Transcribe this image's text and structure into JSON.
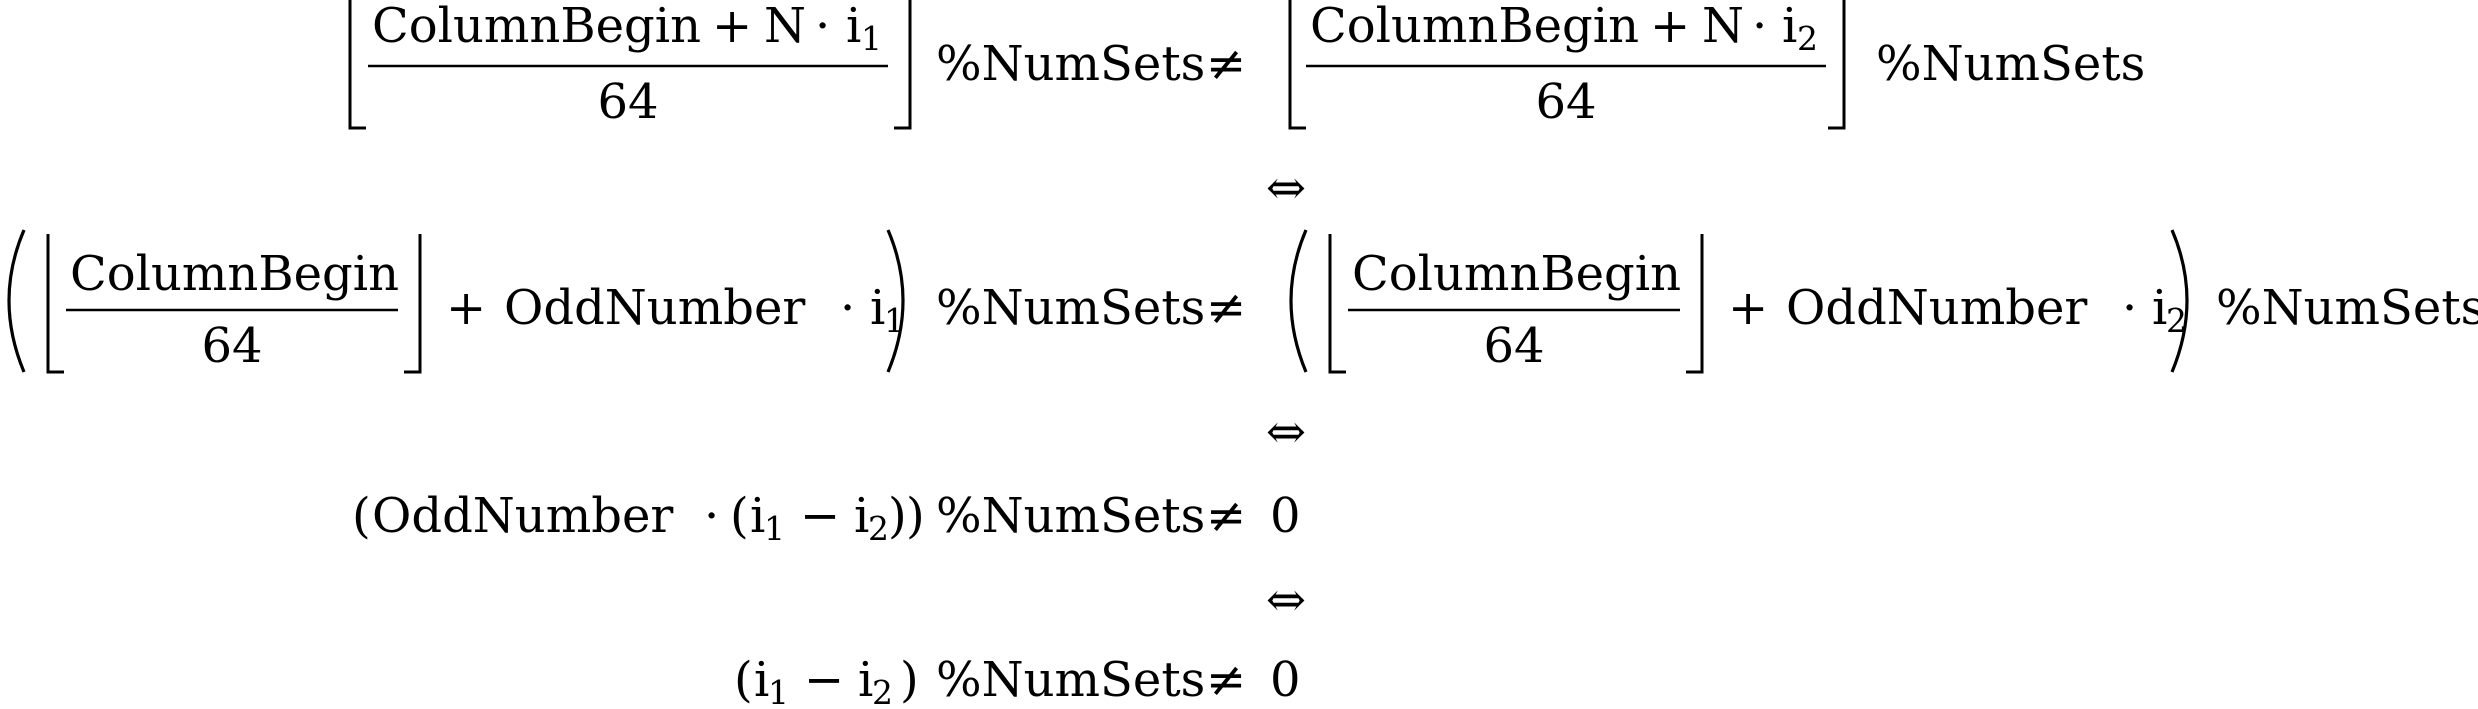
{
  "symbols": {
    "plus": "+",
    "cdot": "·",
    "minus": "−",
    "neq": "≠",
    "iff": "⇔",
    "lparen": "(",
    "rparen": ")",
    "subscript_one": "1",
    "subscript_two": "2",
    "zero": "0"
  },
  "terms": {
    "column_begin": "ColumnBegin",
    "n": "N",
    "i": "i",
    "denominator": "64",
    "num_sets": "%NumSets",
    "odd_number": "OddNumber"
  }
}
